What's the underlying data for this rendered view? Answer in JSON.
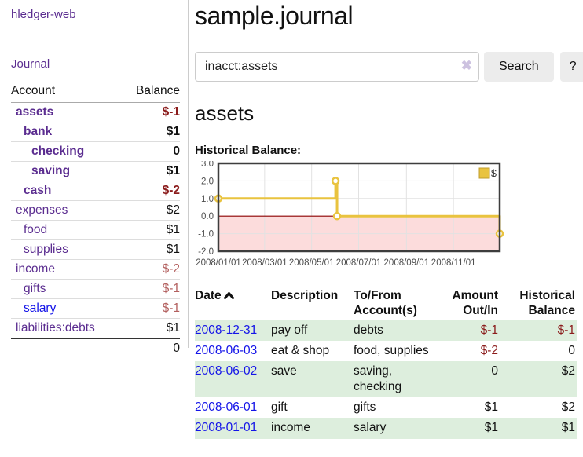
{
  "app": {
    "brand": "hledger-web",
    "nav_journal": "Journal"
  },
  "colors": {
    "link_purple": "#5b2d90",
    "link_blue": "#1414e8",
    "negative_strong": "#8b1c1c",
    "negative_soft": "#b3605f",
    "row_shade_green": "#ddeedd",
    "chart_gold": "#e9c33f"
  },
  "sidebar": {
    "table": {
      "col_account": "Account",
      "col_balance": "Balance",
      "rows": [
        {
          "name": "assets",
          "balance": "$-1",
          "depth": 1,
          "bold": true,
          "name_class": "purple",
          "balance_class": "neg-strong"
        },
        {
          "name": "bank",
          "balance": "$1",
          "depth": 2,
          "bold": true,
          "name_class": "purple",
          "balance_class": ""
        },
        {
          "name": "checking",
          "balance": "0",
          "depth": 3,
          "bold": true,
          "name_class": "purple",
          "balance_class": ""
        },
        {
          "name": "saving",
          "balance": "$1",
          "depth": 3,
          "bold": true,
          "name_class": "purple",
          "balance_class": ""
        },
        {
          "name": "cash",
          "balance": "$-2",
          "depth": 2,
          "bold": true,
          "name_class": "purple",
          "balance_class": "neg-strong"
        },
        {
          "name": "expenses",
          "balance": "$2",
          "depth": 1,
          "bold": false,
          "name_class": "purple",
          "balance_class": ""
        },
        {
          "name": "food",
          "balance": "$1",
          "depth": 2,
          "bold": false,
          "name_class": "purple",
          "balance_class": ""
        },
        {
          "name": "supplies",
          "balance": "$1",
          "depth": 2,
          "bold": false,
          "name_class": "purple",
          "balance_class": ""
        },
        {
          "name": "income",
          "balance": "$-2",
          "depth": 1,
          "bold": false,
          "name_class": "purple",
          "balance_class": "neg-soft"
        },
        {
          "name": "gifts",
          "balance": "$-1",
          "depth": 2,
          "bold": false,
          "name_class": "purple",
          "balance_class": "neg-soft"
        },
        {
          "name": "salary",
          "balance": "$-1",
          "depth": 2,
          "bold": false,
          "name_class": "blue",
          "balance_class": "neg-soft"
        },
        {
          "name": "liabilities:debts",
          "balance": "$1",
          "depth": 1,
          "bold": false,
          "name_class": "purple",
          "balance_class": ""
        }
      ],
      "total": "0"
    }
  },
  "header": {
    "title": "sample.journal"
  },
  "search": {
    "value": "inacct:assets",
    "clear_icon": "✖",
    "button_label": "Search",
    "help_label": "?"
  },
  "account_page": {
    "heading": "assets",
    "chart_label": "Historical Balance:"
  },
  "chart_data": {
    "type": "line",
    "title": "Historical Balance:",
    "style": "step-after",
    "ylim": [
      -2,
      3
    ],
    "x_range_days": [
      0,
      365
    ],
    "y_ticks": [
      3.0,
      2.0,
      1.0,
      0.0,
      -1.0,
      -2.0
    ],
    "x_ticks": [
      {
        "day": 0,
        "label": "2008/01/01"
      },
      {
        "day": 60,
        "label": "2008/03/01"
      },
      {
        "day": 121,
        "label": "2008/05/01"
      },
      {
        "day": 182,
        "label": "2008/07/01"
      },
      {
        "day": 244,
        "label": "2008/09/01"
      },
      {
        "day": 305,
        "label": "2008/11/01"
      }
    ],
    "series": [
      {
        "name": "$",
        "color": "#e9c33f",
        "points": [
          {
            "date": "2008-01-01",
            "day": 0,
            "value": 1
          },
          {
            "date": "2008-06-01",
            "day": 152,
            "value": 2
          },
          {
            "date": "2008-06-03",
            "day": 154,
            "value": 0
          },
          {
            "date": "2008-12-31",
            "day": 365,
            "value": -1
          }
        ]
      }
    ],
    "legend_position": "top-right",
    "grid": true,
    "negative_region_fill": "#fcdcdc",
    "zero_line_color": "#8b0000"
  },
  "register": {
    "columns": {
      "date": "Date",
      "description": "Description",
      "accounts": "To/From Account(s)",
      "amount": "Amount Out/In",
      "balance": "Historical Balance"
    },
    "rows": [
      {
        "date": "2008-12-31",
        "description": "pay off",
        "accounts": "debts",
        "amount": "$-1",
        "balance": "$-1",
        "amount_class": "neg-strong",
        "balance_class": "neg-strong",
        "shaded": true
      },
      {
        "date": "2008-06-03",
        "description": "eat & shop",
        "accounts": "food, supplies",
        "amount": "$-2",
        "balance": "0",
        "amount_class": "neg-strong",
        "balance_class": "",
        "shaded": false
      },
      {
        "date": "2008-06-02",
        "description": "save",
        "accounts": "saving, checking",
        "amount": "0",
        "balance": "$2",
        "amount_class": "",
        "balance_class": "",
        "shaded": true
      },
      {
        "date": "2008-06-01",
        "description": "gift",
        "accounts": "gifts",
        "amount": "$1",
        "balance": "$2",
        "amount_class": "",
        "balance_class": "",
        "shaded": false
      },
      {
        "date": "2008-01-01",
        "description": "income",
        "accounts": "salary",
        "amount": "$1",
        "balance": "$1",
        "amount_class": "",
        "balance_class": "",
        "shaded": true
      }
    ]
  }
}
